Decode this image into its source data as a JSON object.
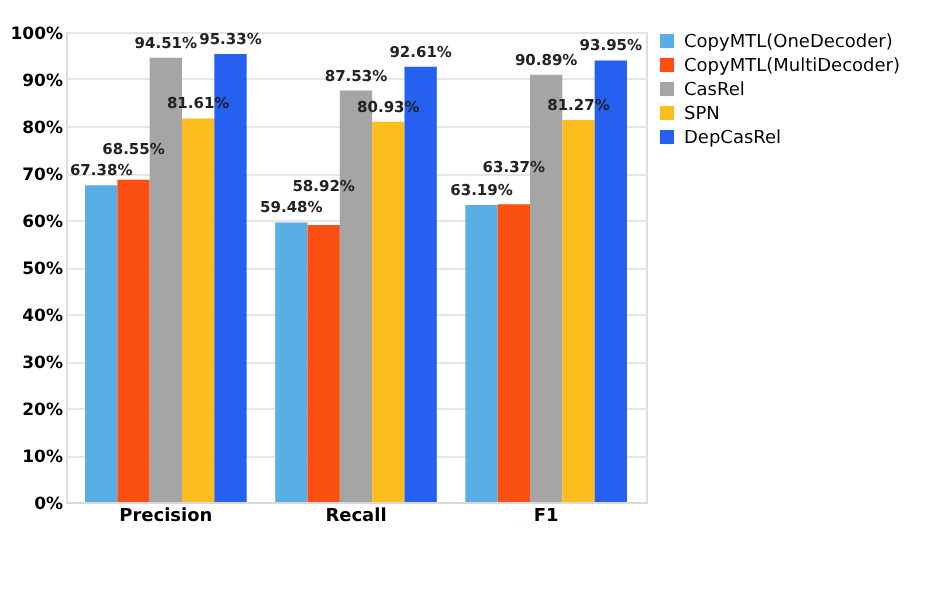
{
  "chart_data": {
    "type": "bar",
    "categories": [
      "Precision",
      "Recall",
      "F1"
    ],
    "series": [
      {
        "name": "CopyMTL(OneDecoder)",
        "color": "#5aaee6",
        "values": [
          67.38,
          59.48,
          63.19
        ],
        "value_labels": [
          "67.38%",
          "59.48%",
          "63.19%"
        ]
      },
      {
        "name": "CopyMTL(MultiDecoder)",
        "color": "#fb5012",
        "values": [
          68.55,
          58.92,
          63.37
        ],
        "value_labels": [
          "68.55%",
          "58.92%",
          "63.37%"
        ]
      },
      {
        "name": "CasRel",
        "color": "#a5a5a5",
        "values": [
          94.51,
          87.53,
          90.89
        ],
        "value_labels": [
          "94.51%",
          "87.53%",
          "90.89%"
        ]
      },
      {
        "name": "SPN",
        "color": "#fcbe1e",
        "values": [
          81.61,
          80.93,
          81.27
        ],
        "value_labels": [
          "81.61%",
          "80.93%",
          "81.27%"
        ]
      },
      {
        "name": "DepCasRel",
        "color": "#2560f0",
        "values": [
          95.33,
          92.61,
          93.95
        ],
        "value_labels": [
          "95.33%",
          "92.61%",
          "93.95%"
        ]
      }
    ],
    "ylim": [
      0,
      100
    ],
    "yticks": [
      {
        "value": 0,
        "label": "0%"
      },
      {
        "value": 10,
        "label": "10%"
      },
      {
        "value": 20,
        "label": "20%"
      },
      {
        "value": 30,
        "label": "30%"
      },
      {
        "value": 40,
        "label": "40%"
      },
      {
        "value": 50,
        "label": "50%"
      },
      {
        "value": 60,
        "label": "60%"
      },
      {
        "value": 70,
        "label": "70%"
      },
      {
        "value": 80,
        "label": "80%"
      },
      {
        "value": 90,
        "label": "90%"
      },
      {
        "value": 100,
        "label": "100%"
      }
    ],
    "grid": "y",
    "legend": "right"
  }
}
